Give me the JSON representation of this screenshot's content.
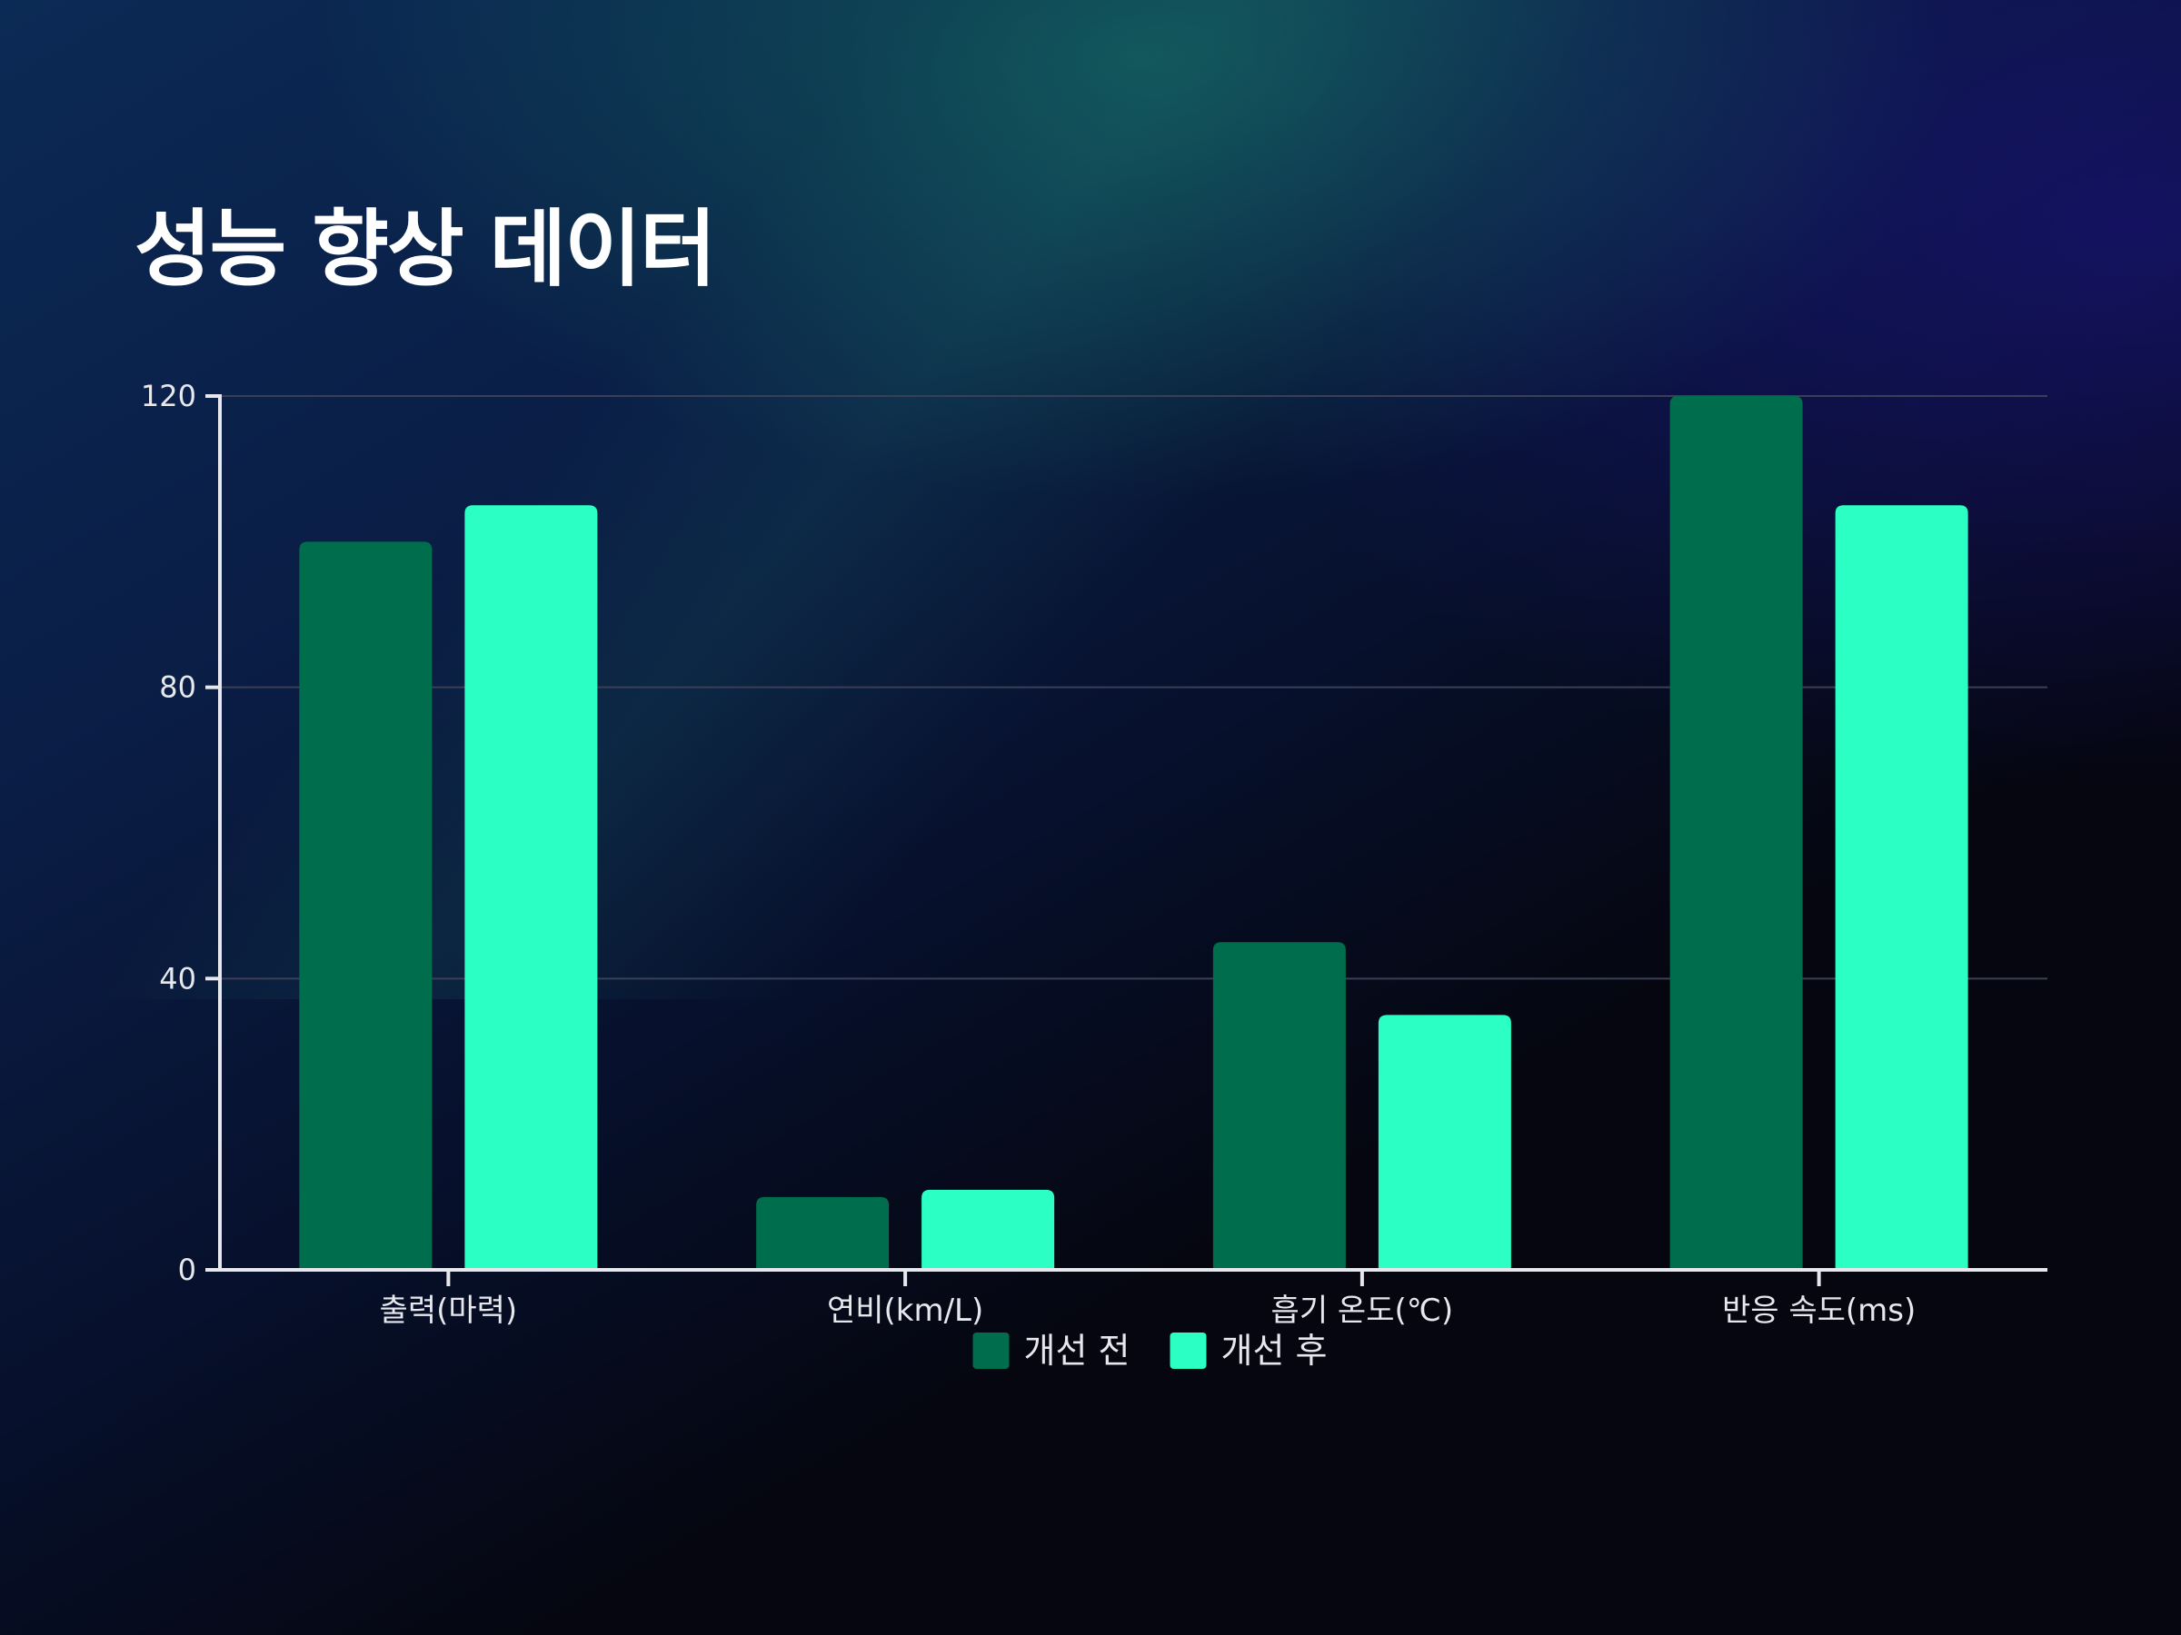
{
  "slide": {
    "title": "성능 향상 데이터"
  },
  "colors": {
    "before": "#006d4c",
    "after": "#2bffc4",
    "axis": "#e6e8ee",
    "grid": "#3a3f55"
  },
  "chart_data": {
    "type": "bar",
    "categories": [
      "출력(마력)",
      "연비(km/L)",
      "흡기 온도(℃)",
      "반응 속도(ms)"
    ],
    "series": [
      {
        "name": "개선 전",
        "values": [
          100,
          10,
          45,
          120
        ]
      },
      {
        "name": "개선 후",
        "values": [
          105,
          11,
          35,
          105
        ]
      }
    ],
    "ylim": [
      0,
      120
    ],
    "yticks": [
      0,
      40,
      80,
      120
    ],
    "grid": true,
    "legend_position": "bottom-center"
  }
}
